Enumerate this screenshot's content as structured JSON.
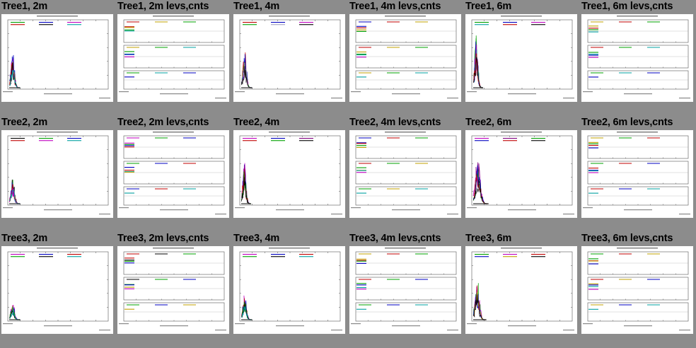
{
  "panels": [
    {
      "title": "Tree1, 2m",
      "kind": "spectrum",
      "peak": 0.55,
      "width": 0.1,
      "colors": [
        "#00a000",
        "#0000c0",
        "#c000c0",
        "#c00000",
        "#000000",
        "#00a0a0"
      ]
    },
    {
      "title": "Tree1, 2m levs,cnts",
      "kind": "levels",
      "colors": [
        "#c00000",
        "#c0a000",
        "#00a000",
        "#00a0a0",
        "#0000c0",
        "#c000c0",
        "#000000"
      ]
    },
    {
      "title": "Tree1, 4m",
      "kind": "spectrum",
      "peak": 0.55,
      "width": 0.1,
      "colors": [
        "#c00000",
        "#0000c0",
        "#c000c0",
        "#00a000",
        "#a0a0c0",
        "#000000"
      ]
    },
    {
      "title": "Tree1, 4m levs,cnts",
      "kind": "levels",
      "colors": [
        "#0000c0",
        "#c00000",
        "#c0a000",
        "#00a000",
        "#00a0a0",
        "#c000c0",
        "#000000"
      ]
    },
    {
      "title": "Tree1, 6m",
      "kind": "spectrum",
      "peak": 0.8,
      "width": 0.09,
      "colors": [
        "#00a000",
        "#0000c0",
        "#c000c0",
        "#00a0a0",
        "#c00000",
        "#000000"
      ]
    },
    {
      "title": "Tree1, 6m levs,cnts",
      "kind": "levels",
      "colors": [
        "#c0a000",
        "#c00000",
        "#00a000",
        "#00a0a0",
        "#0000c0",
        "#c000c0",
        "#000000"
      ]
    },
    {
      "title": "Tree2, 2m",
      "kind": "spectrum",
      "peak": 0.4,
      "width": 0.1,
      "colors": [
        "#000000",
        "#00a000",
        "#0000c0",
        "#c00000",
        "#c000c0",
        "#00a0a0"
      ]
    },
    {
      "title": "Tree2, 2m levs,cnts",
      "kind": "levels",
      "colors": [
        "#c000c0",
        "#00a000",
        "#0000c0",
        "#c00000",
        "#00a0a0",
        "#c0a000",
        "#000000"
      ]
    },
    {
      "title": "Tree2, 4m",
      "kind": "spectrum",
      "peak": 0.7,
      "width": 0.09,
      "colors": [
        "#c000c0",
        "#0000c0",
        "#800080",
        "#c00000",
        "#00a000",
        "#000000"
      ]
    },
    {
      "title": "Tree2, 4m levs,cnts",
      "kind": "levels",
      "colors": [
        "#0000c0",
        "#c00000",
        "#00a000",
        "#c0a000",
        "#00a0a0",
        "#c000c0",
        "#000000"
      ]
    },
    {
      "title": "Tree2, 6m",
      "kind": "spectrum",
      "peak": 0.75,
      "width": 0.14,
      "colors": [
        "#c000c0",
        "#800080",
        "#00a000",
        "#0000c0",
        "#c00000",
        "#000000"
      ]
    },
    {
      "title": "Tree2, 6m levs,cnts",
      "kind": "levels",
      "colors": [
        "#c0a000",
        "#00a000",
        "#c00000",
        "#0000c0",
        "#00a0a0",
        "#c000c0",
        "#000000"
      ]
    },
    {
      "title": "Tree3, 2m",
      "kind": "spectrum",
      "peak": 0.25,
      "width": 0.1,
      "colors": [
        "#c000c0",
        "#0000c0",
        "#c00000",
        "#00a000",
        "#000000",
        "#00a0a0"
      ]
    },
    {
      "title": "Tree3, 2m levs,cnts",
      "kind": "levels",
      "colors": [
        "#c00000",
        "#000000",
        "#00a000",
        "#0000c0",
        "#c0a000",
        "#c000c0",
        "#00a0a0"
      ]
    },
    {
      "title": "Tree3, 4m",
      "kind": "spectrum",
      "peak": 0.4,
      "width": 0.1,
      "colors": [
        "#c000c0",
        "#0000c0",
        "#c00000",
        "#00a000",
        "#000000",
        "#00a0a0"
      ]
    },
    {
      "title": "Tree3, 4m levs,cnts",
      "kind": "levels",
      "colors": [
        "#c0a000",
        "#c00000",
        "#00a000",
        "#0000c0",
        "#00a0a0",
        "#c000c0",
        "#000000"
      ]
    },
    {
      "title": "Tree3, 6m",
      "kind": "spectrum",
      "peak": 0.6,
      "width": 0.12,
      "colors": [
        "#00a000",
        "#c000c0",
        "#c00000",
        "#0000c0",
        "#c0a000",
        "#000000"
      ]
    },
    {
      "title": "Tree3, 6m levs,cnts",
      "kind": "levels",
      "colors": [
        "#00a000",
        "#c00000",
        "#c0a000",
        "#0000c0",
        "#00a0a0",
        "#c000c0",
        "#000000"
      ]
    }
  ]
}
